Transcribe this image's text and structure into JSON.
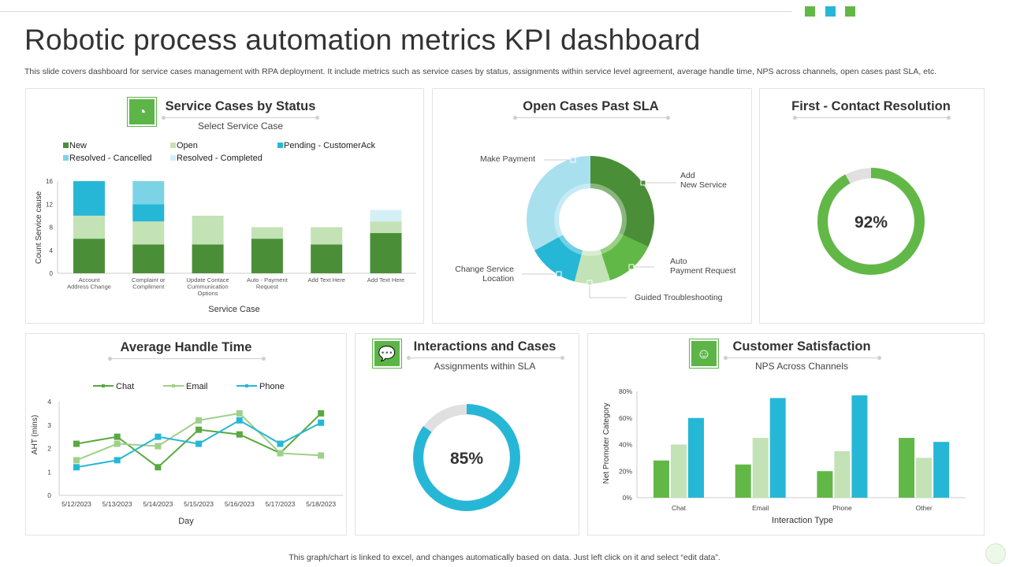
{
  "header": {
    "title": "Robotic process automation metrics KPI dashboard",
    "subtitle": "This slide covers dashboard for service cases management with RPA deployment. It include metrics such as service cases by status, assignments within service level agreement, average handle time, NPS  across channels, open cases past SLA, etc."
  },
  "footer": "This graph/chart is linked to excel, and changes automatically based on data. Just left click on it and select “edit data”.",
  "colors": {
    "dark_green": "#4a8f37",
    "green": "#62b846",
    "light_green": "#c3e2b5",
    "cyan": "#27b7d6",
    "light_cyan": "#7dd3e6",
    "pale_cyan": "#d5eff6",
    "grey": "#d9d9d9"
  },
  "panels": {
    "service_cases": {
      "title": "Service Cases by Status",
      "subtitle": "Select Service Case",
      "icon": "gauge-user-icon"
    },
    "open_cases": {
      "title": "Open Cases Past SLA"
    },
    "first_contact": {
      "title": "First - Contact Resolution"
    },
    "aht": {
      "title": "Average Handle Time"
    },
    "interactions": {
      "title": "Interactions and Cases",
      "subtitle": "Assignments within SLA",
      "icon": "chat-bubbles-icon"
    },
    "csat": {
      "title": "Customer Satisfaction",
      "subtitle": "NPS Across Channels",
      "icon": "person-chat-icon"
    }
  },
  "chart_data": [
    {
      "type": "bar",
      "stacked": true,
      "xlabel": "Service Case",
      "ylabel": "Count Service cause",
      "ylim": [
        0,
        16
      ],
      "yticks": [
        "0",
        "4",
        "8",
        "12",
        "16"
      ],
      "legend": "top",
      "categories": [
        "Account Address Change",
        "Complaint or Compliment",
        "Update Contace Cummunication Options",
        "Auto - Payment Request",
        "Add Text Here",
        "Add Text Here"
      ],
      "series": [
        {
          "name": "New",
          "color": "#4a8f37",
          "values": [
            6,
            5,
            5,
            6,
            5,
            7
          ]
        },
        {
          "name": "Open",
          "color": "#c3e2b5",
          "values": [
            4,
            4,
            5,
            2,
            3,
            2
          ]
        },
        {
          "name": "Pending - CustomerAck",
          "color": "#27b7d6",
          "values": [
            6,
            3,
            0,
            0,
            0,
            0
          ]
        },
        {
          "name": "Resolved - Cancelled",
          "color": "#7dd3e6",
          "values": [
            0,
            4,
            0,
            0,
            0,
            0
          ]
        },
        {
          "name": "Resolved -  Completed",
          "color": "#d5eff6",
          "values": [
            0,
            0,
            0,
            0,
            0,
            2
          ]
        }
      ]
    },
    {
      "type": "pie",
      "donut": true,
      "slices": [
        {
          "label": "Add\nNew Service",
          "value": 32,
          "color": "#4a8f37"
        },
        {
          "label": "Auto\nPayment Request",
          "value": 13,
          "color": "#62b846"
        },
        {
          "label": "Guided Troubleshooting",
          "value": 9,
          "color": "#c3e2b5"
        },
        {
          "label": "Change Service\nLocation",
          "value": 13,
          "color": "#27b7d6"
        },
        {
          "label": "Make Payment",
          "value": 33,
          "color": "#a8e0ee"
        }
      ]
    },
    {
      "type": "pie",
      "donut": true,
      "value": 92,
      "label": "92%",
      "color": "#62b846"
    },
    {
      "type": "line",
      "xlabel": "Day",
      "ylabel": "AHT (mins)",
      "ylim": [
        0,
        4
      ],
      "yticks": [
        "0",
        "1",
        "2",
        "3",
        "4"
      ],
      "legend": "top",
      "x": [
        "5/12/2023",
        "5/13/2023",
        "5/14/2023",
        "5/15/2023",
        "5/16/2023",
        "5/17/2023",
        "5/18/2023"
      ],
      "series": [
        {
          "name": "Chat",
          "color": "#5aa83f",
          "values": [
            2.2,
            2.5,
            1.2,
            2.8,
            2.6,
            1.8,
            3.5
          ]
        },
        {
          "name": "Email",
          "color": "#9fd08a",
          "values": [
            1.5,
            2.2,
            2.1,
            3.2,
            3.5,
            1.8,
            1.7
          ]
        },
        {
          "name": "Phone",
          "color": "#27b7d6",
          "values": [
            1.2,
            1.5,
            2.5,
            2.2,
            3.2,
            2.2,
            3.1
          ]
        }
      ]
    },
    {
      "type": "pie",
      "donut": true,
      "value": 85,
      "label": "85%",
      "color": "#27b7d6"
    },
    {
      "type": "bar",
      "xlabel": "Interaction Type",
      "ylabel": "Net Promoter Category",
      "ylim": [
        0,
        80
      ],
      "yticks": [
        "0%",
        "20%",
        "40%",
        "60%",
        "80%"
      ],
      "categories": [
        "Chat",
        "Email",
        "Phone",
        "Other"
      ],
      "series": [
        {
          "color": "#62b846",
          "values": [
            28,
            25,
            20,
            45
          ]
        },
        {
          "color": "#c3e2b5",
          "values": [
            40,
            45,
            35,
            30
          ]
        },
        {
          "color": "#27b7d6",
          "values": [
            60,
            75,
            77,
            42
          ]
        }
      ]
    }
  ]
}
